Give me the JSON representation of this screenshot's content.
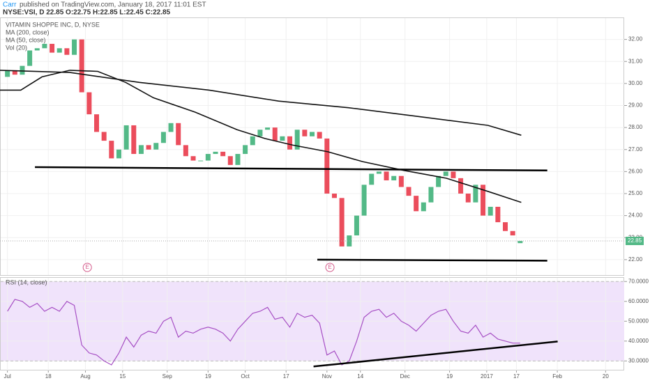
{
  "header": {
    "author": "Carr",
    "published": "published on TradingView.com, January 18, 2017 11:01 EST",
    "symbol_line": "NYSE:VSI, D  22.85 O:22.75 H:22.85 L:22.45 C:22.85"
  },
  "chart_data": [
    {
      "type": "candlestick",
      "title": "VITAMIN SHOPPE INC, D, NYSE",
      "volume_label": "Vol (20)",
      "up_color": "#53b987",
      "down_color": "#eb4d5c",
      "x": [
        0,
        2,
        4,
        6,
        8,
        10,
        12,
        14,
        16,
        18,
        20,
        22,
        24,
        26,
        28,
        30,
        32,
        34,
        36,
        38,
        40,
        42,
        44,
        46,
        48,
        50,
        52,
        54,
        56,
        58,
        60,
        62,
        64,
        66,
        68,
        70,
        72,
        74,
        76,
        78,
        80,
        82,
        84,
        86,
        88,
        90,
        92,
        94,
        96,
        98,
        100,
        102,
        104,
        106,
        108,
        110,
        112,
        114,
        116,
        118,
        120,
        122,
        124,
        126,
        128,
        130,
        132,
        134,
        136,
        138
      ],
      "open": [
        30.3,
        30.6,
        30.4,
        30.8,
        31.5,
        31.6,
        31.8,
        31.4,
        31.6,
        31.3,
        32.0,
        29.6,
        28.6,
        27.8,
        27.4,
        26.6,
        27.0,
        28.1,
        26.8,
        27.2,
        27.0,
        27.3,
        27.8,
        28.2,
        27.2,
        26.7,
        26.5,
        26.5,
        26.8,
        26.9,
        26.7,
        26.3,
        26.8,
        27.2,
        27.6,
        27.9,
        28.0,
        27.4,
        27.6,
        27.0,
        27.9,
        27.6,
        27.8,
        27.5,
        25.0,
        24.8,
        22.6,
        23.1,
        24.0,
        25.4,
        25.9,
        26.0,
        25.6,
        25.8,
        25.3,
        24.9,
        24.2,
        24.6,
        25.3,
        25.8,
        26.0,
        25.7,
        25.0,
        24.6,
        25.4,
        24.0,
        24.4,
        23.7,
        23.3,
        22.75
      ],
      "close": [
        30.6,
        30.4,
        30.8,
        31.5,
        31.6,
        31.8,
        31.4,
        31.6,
        31.3,
        32.0,
        29.6,
        28.6,
        27.8,
        27.4,
        26.6,
        27.0,
        28.1,
        26.8,
        27.2,
        27.0,
        27.3,
        27.8,
        28.2,
        27.2,
        26.7,
        26.5,
        26.5,
        26.8,
        26.9,
        26.7,
        26.3,
        26.8,
        27.2,
        27.6,
        27.9,
        28.0,
        27.4,
        27.6,
        27.0,
        27.9,
        27.6,
        27.8,
        27.5,
        25.0,
        24.8,
        22.6,
        23.1,
        24.0,
        25.4,
        25.9,
        26.0,
        25.6,
        25.8,
        25.3,
        24.9,
        24.2,
        24.6,
        25.3,
        25.8,
        26.0,
        25.7,
        25.0,
        24.6,
        25.4,
        24.0,
        24.4,
        23.7,
        23.3,
        23.1,
        22.85
      ],
      "series": [
        {
          "name": "MA (200, close)",
          "color": "#111111",
          "x": [
            -2,
            16.8,
            35.5,
            54.3,
            73,
            91.8,
            110.6,
            129.3,
            138.3
          ],
          "values": [
            30.6,
            30.5,
            30.05,
            29.7,
            29.2,
            28.9,
            28.5,
            28.1,
            27.65
          ]
        },
        {
          "name": "MA (50, close)",
          "color": "#111111",
          "x": [
            -2,
            3.6,
            9.3,
            16.8,
            24.3,
            31.8,
            39.3,
            50.5,
            61.8,
            69.3,
            76.8,
            86.2,
            95.6,
            106.8,
            118.1,
            129.3,
            138.3
          ],
          "values": [
            29.7,
            29.7,
            30.3,
            30.6,
            30.55,
            30.05,
            29.35,
            28.7,
            27.9,
            27.5,
            27.2,
            26.9,
            26.45,
            26.05,
            25.7,
            25.1,
            24.6
          ]
        }
      ],
      "trendlines": [
        {
          "x": [
            7.4,
            145.3
          ],
          "values": [
            26.2,
            26.05
          ]
        },
        {
          "x": [
            83.4,
            145.3
          ],
          "values": [
            22.0,
            21.95
          ]
        }
      ],
      "events": [
        {
          "x": 21.5,
          "label": "E"
        },
        {
          "x": 86.8,
          "label": "E"
        }
      ],
      "last_price": 22.85,
      "xlim": [
        -2,
        166
      ],
      "ylim": [
        21.3,
        33.0
      ],
      "yticks": [
        {
          "value": 22,
          "label": "22.00"
        },
        {
          "value": 23,
          "label": "23.00"
        },
        {
          "value": 24,
          "label": "24.00"
        },
        {
          "value": 25,
          "label": "25.00"
        },
        {
          "value": 26,
          "label": "26.00"
        },
        {
          "value": 27,
          "label": "27.00"
        },
        {
          "value": 28,
          "label": "28.00"
        },
        {
          "value": 29,
          "label": "29.00"
        },
        {
          "value": 30,
          "label": "30.00"
        },
        {
          "value": 31,
          "label": "31.00"
        },
        {
          "value": 32,
          "label": "32.00"
        }
      ],
      "grid": true
    },
    {
      "type": "line",
      "title": "RSI (14, close)",
      "band_color": "#f0e3fb",
      "bands": [
        30,
        70
      ],
      "series": [
        {
          "name": "RSI",
          "color": "#a64fc4",
          "x": [
            0,
            2,
            4,
            6,
            8,
            10,
            12,
            14,
            16,
            18,
            20,
            22,
            24,
            26,
            28,
            30,
            32,
            34,
            36,
            38,
            40,
            42,
            44,
            46,
            48,
            50,
            52,
            54,
            56,
            58,
            60,
            62,
            64,
            66,
            68,
            70,
            72,
            74,
            76,
            78,
            80,
            82,
            84,
            86,
            88,
            90,
            92,
            94,
            96,
            98,
            100,
            102,
            104,
            106,
            108,
            110,
            112,
            114,
            116,
            118,
            120,
            122,
            124,
            126,
            128,
            130,
            132,
            134,
            136,
            138
          ],
          "values": [
            55,
            61,
            60,
            57,
            59,
            55,
            57,
            55,
            60,
            58,
            38,
            34,
            33,
            30,
            28,
            34,
            42,
            37,
            43,
            45,
            44,
            50,
            52,
            42,
            45,
            44,
            46,
            47,
            46,
            44,
            40,
            46,
            50,
            54,
            55,
            57,
            51,
            52,
            47,
            54,
            52,
            53,
            49,
            33,
            35,
            28,
            30,
            40,
            52,
            55,
            56,
            52,
            54,
            50,
            48,
            45,
            49,
            53,
            55,
            56,
            50,
            45,
            44,
            48,
            42,
            44,
            41,
            40,
            39,
            39
          ]
        }
      ],
      "trendlines": [
        {
          "x": [
            82.4,
            148.1
          ],
          "values": [
            27.2,
            39.8
          ]
        }
      ],
      "xlim": [
        -2,
        166
      ],
      "ylim": [
        25.2,
        72.2
      ],
      "yticks": [
        {
          "value": 30,
          "label": "30.0000"
        },
        {
          "value": 40,
          "label": "40.0000"
        },
        {
          "value": 50,
          "label": "50.0000"
        },
        {
          "value": 60,
          "label": "60.0000"
        },
        {
          "value": 70,
          "label": "70.0000"
        }
      ],
      "xticks": [
        {
          "value": 0,
          "label": "Jul"
        },
        {
          "value": 11,
          "label": "18"
        },
        {
          "value": 21,
          "label": "Aug"
        },
        {
          "value": 31,
          "label": "15"
        },
        {
          "value": 43,
          "label": "Sep"
        },
        {
          "value": 54,
          "label": "19"
        },
        {
          "value": 64,
          "label": "Oct"
        },
        {
          "value": 75,
          "label": "17"
        },
        {
          "value": 86,
          "label": "Nov"
        },
        {
          "value": 95,
          "label": "14"
        },
        {
          "value": 107,
          "label": "Dec"
        },
        {
          "value": 119,
          "label": "19"
        },
        {
          "value": 129,
          "label": "2017"
        },
        {
          "value": 137,
          "label": "17"
        },
        {
          "value": 148,
          "label": "Feb"
        },
        {
          "value": 161,
          "label": "20"
        }
      ],
      "grid": true
    }
  ]
}
